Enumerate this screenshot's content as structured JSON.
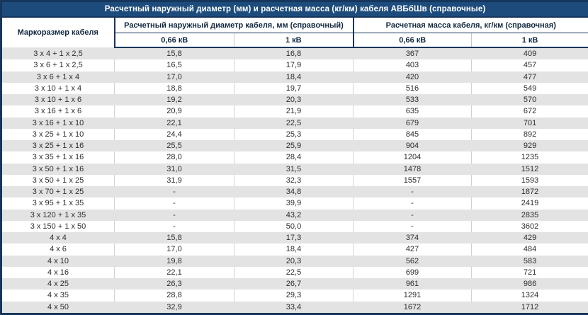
{
  "title": "Расчетный наружный диаметр (мм) и расчетная масса (кг/км) кабеля АВБбШв (справочные)",
  "header": {
    "col_size": "Маркоразмер кабеля",
    "group_diameter": "Расчетный наружный диаметр кабеля, мм (справочный)",
    "group_mass": "Расчетная масса кабеля, кг/км (справочная)",
    "sub_voltage_low": "0,66 кВ",
    "sub_voltage_high": "1 кВ"
  },
  "colors": {
    "title_bar_bg": "#1d4c7c",
    "title_bar_text": "#ffffff",
    "table_border": "#16365c",
    "header_text": "#10273f",
    "row_stripe": "#e3e3e3",
    "data_text": "#2d2d2d"
  },
  "chart_data": {
    "type": "table",
    "title": "Расчетный наружный диаметр (мм) и расчетная масса (кг/км) кабеля АВБбШв (справочные)",
    "column_groups": [
      {
        "label": "Маркоразмер кабеля",
        "span": 1
      },
      {
        "label": "Расчетный наружный диаметр кабеля, мм (справочный)",
        "span": 2
      },
      {
        "label": "Расчетная масса кабеля, кг/км (справочная)",
        "span": 2
      }
    ],
    "columns": [
      "Маркоразмер кабеля",
      "0,66 кВ",
      "1 кВ",
      "0,66 кВ",
      "1 кВ"
    ],
    "rows": [
      [
        "3 x 4 + 1 x 2,5",
        "15,8",
        "16,8",
        "367",
        "409"
      ],
      [
        "3 x 6 + 1 x 2,5",
        "16,5",
        "17,9",
        "403",
        "457"
      ],
      [
        "3 x 6 + 1 x 4",
        "17,0",
        "18,4",
        "420",
        "477"
      ],
      [
        "3 x 10 + 1 x 4",
        "18,8",
        "19,7",
        "516",
        "549"
      ],
      [
        "3 x 10 + 1 x 6",
        "19,2",
        "20,3",
        "533",
        "570"
      ],
      [
        "3 x 16 + 1 x 6",
        "20,9",
        "21,9",
        "635",
        "672"
      ],
      [
        "3 x 16 + 1 x 10",
        "22,1",
        "22,5",
        "679",
        "701"
      ],
      [
        "3 x 25 + 1 x 10",
        "24,4",
        "25,3",
        "845",
        "892"
      ],
      [
        "3 x 25 + 1 x 16",
        "25,5",
        "25,9",
        "904",
        "929"
      ],
      [
        "3 x 35 + 1 x 16",
        "28,0",
        "28,4",
        "1204",
        "1235"
      ],
      [
        "3 x 50 + 1 x 16",
        "31,0",
        "31,5",
        "1478",
        "1512"
      ],
      [
        "3 x 50 + 1 x 25",
        "31,9",
        "32,3",
        "1557",
        "1593"
      ],
      [
        "3 x 70 + 1 x 25",
        "-",
        "34,8",
        "-",
        "1872"
      ],
      [
        "3 x 95 + 1 x 35",
        "-",
        "39,9",
        "-",
        "2419"
      ],
      [
        "3 x 120 + 1 x 35",
        "-",
        "43,2",
        "-",
        "2835"
      ],
      [
        "3 x 150 + 1 x 50",
        "-",
        "50,0",
        "-",
        "3602"
      ],
      [
        "4 x 4",
        "15,8",
        "17,3",
        "374",
        "429"
      ],
      [
        "4 x 6",
        "17,0",
        "18,4",
        "427",
        "484"
      ],
      [
        "4 x 10",
        "19,8",
        "20,3",
        "562",
        "583"
      ],
      [
        "4 x 16",
        "22,1",
        "22,5",
        "699",
        "721"
      ],
      [
        "4 x 25",
        "26,3",
        "26,7",
        "961",
        "986"
      ],
      [
        "4 x 35",
        "28,8",
        "29,3",
        "1291",
        "1324"
      ],
      [
        "4 x 50",
        "32,9",
        "33,4",
        "1672",
        "1712"
      ]
    ]
  }
}
